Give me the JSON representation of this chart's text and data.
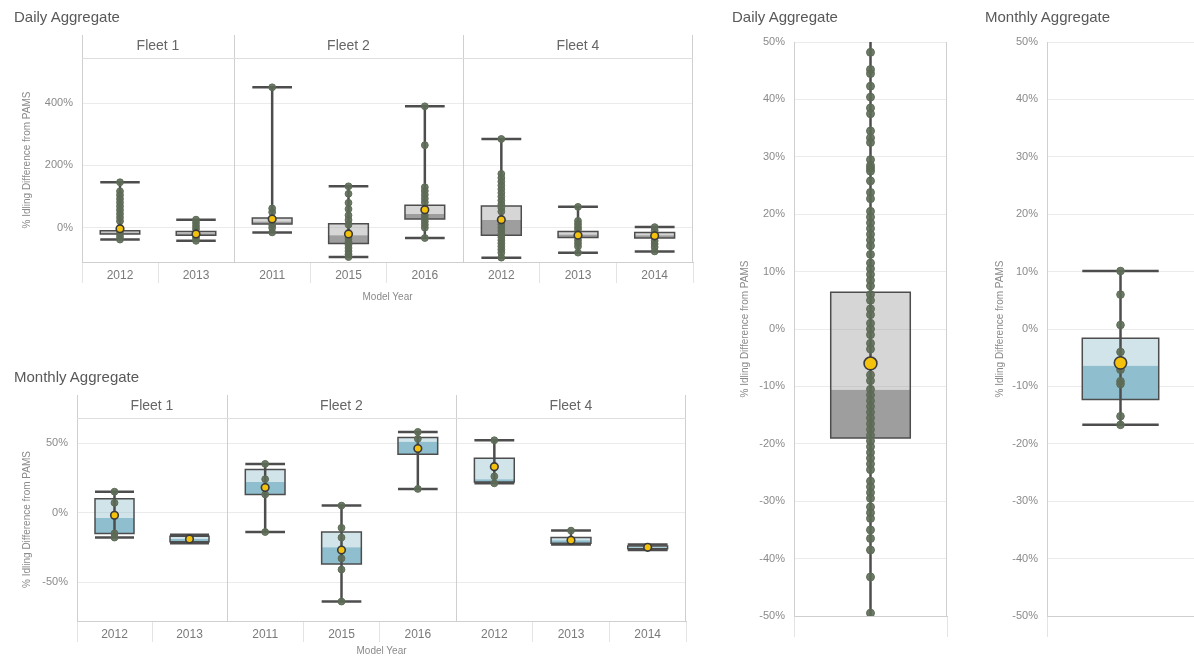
{
  "chart_data": [
    {
      "type": "box",
      "title": "Daily Aggregate",
      "subtitle": "Fleet 1",
      "ylabel": "% Idling Difference from PAMS",
      "categories": [
        "2012",
        "2013"
      ],
      "color": "#9e9e9e",
      "boxes": [
        {
          "low": -38,
          "q1": -20,
          "median": -15,
          "q3": -10,
          "high": 146,
          "mean": -3,
          "outliers": [
            146,
            117,
            105,
            93,
            81,
            69,
            57,
            45,
            33,
            21,
            -18,
            -28,
            -38
          ]
        },
        {
          "low": -42,
          "q1": -24,
          "median": -18,
          "q3": -12,
          "high": 26,
          "mean": -20,
          "outliers": [
            26,
            16,
            6,
            -4,
            -33,
            -42
          ]
        }
      ],
      "ylim": [
        -110,
        545
      ],
      "yticks": [
        {
          "value": 0,
          "label": "0%"
        },
        {
          "value": 200,
          "label": "200%"
        },
        {
          "value": 400,
          "label": "400%"
        }
      ],
      "grid": "y"
    },
    {
      "type": "box",
      "subtitle": "Fleet 2",
      "xlabel": "Model Year",
      "categories": [
        "2011",
        "2015",
        "2016"
      ],
      "color": "#9e9e9e",
      "boxes": [
        {
          "low": -15,
          "q1": 12,
          "median": 20,
          "q3": 31,
          "high": 451,
          "mean": 28,
          "outliers": [
            451,
            62,
            50,
            10,
            0,
            -15
          ]
        },
        {
          "low": -94,
          "q1": -51,
          "median": -24,
          "q3": 13,
          "high": 133,
          "mean": -20,
          "outliers": [
            133,
            109,
            80,
            60,
            40,
            25,
            10,
            -35,
            -45,
            -55,
            -65,
            -75,
            -85,
            -94
          ]
        },
        {
          "low": -33,
          "q1": 28,
          "median": 44,
          "q3": 72,
          "high": 390,
          "mean": 58,
          "outliers": [
            390,
            265,
            130,
            118,
            106,
            94,
            82,
            40,
            30,
            20,
            10,
            0,
            -33
          ]
        }
      ],
      "ylim": [
        -110,
        545
      ],
      "yticks": [
        0,
        200,
        400
      ],
      "grid": "y",
      "tick_labels": "x"
    },
    {
      "type": "box",
      "subtitle": "Fleet 4",
      "categories": [
        "2012",
        "2013",
        "2014"
      ],
      "color": "#9e9e9e",
      "boxes": [
        {
          "low": -96,
          "q1": -24,
          "median": 25,
          "q3": 70,
          "high": 285,
          "mean": 26,
          "outliers": [
            285,
            173,
            160,
            148,
            136,
            124,
            112,
            100,
            88,
            76,
            64,
            52,
            10,
            0,
            -10,
            -20,
            -30,
            -40,
            -50,
            -60,
            -70,
            -80,
            -96
          ]
        },
        {
          "low": -80,
          "q1": -31,
          "median": -22,
          "q3": -12,
          "high": 67,
          "mean": -24,
          "outliers": [
            67,
            22,
            12,
            2,
            -6,
            -40,
            -50,
            -60,
            -80
          ]
        },
        {
          "low": -76,
          "q1": -33,
          "median": -24,
          "q3": -15,
          "high": 2,
          "mean": -26,
          "outliers": [
            2,
            -8,
            -42,
            -52,
            -62,
            -76
          ]
        }
      ],
      "ylim": [
        -110,
        545
      ],
      "yticks": [
        0,
        200,
        400
      ],
      "grid": "y",
      "tick_labels": "x"
    },
    {
      "type": "box",
      "title": "Monthly Aggregate",
      "subtitle": "Fleet 1",
      "ylabel": "% Idling Difference from PAMS",
      "categories": [
        "2012",
        "2013"
      ],
      "color": "#8fbfce",
      "boxes": [
        {
          "low": -18,
          "q1": -15,
          "median": -4,
          "q3": 10,
          "high": 15,
          "mean": -2,
          "outliers": [
            15,
            7,
            -15,
            -18
          ]
        },
        {
          "low": -22,
          "q1": -21,
          "median": -19,
          "q3": -17,
          "high": -16,
          "mean": -19
        }
      ],
      "ylim": [
        -78,
        68
      ],
      "yticks": [
        {
          "value": -50,
          "label": "-50%"
        },
        {
          "value": 0,
          "label": "0%"
        },
        {
          "value": 50,
          "label": "50%"
        }
      ],
      "grid": "y"
    },
    {
      "type": "box",
      "subtitle": "Fleet 2",
      "xlabel": "Model Year",
      "categories": [
        "2011",
        "2015",
        "2016"
      ],
      "color": "#8fbfce",
      "boxes": [
        {
          "low": -14,
          "q1": 13,
          "median": 22,
          "q3": 31,
          "high": 35,
          "mean": 18,
          "outliers": [
            35,
            24,
            13,
            -14
          ]
        },
        {
          "low": -64,
          "q1": -37,
          "median": -25,
          "q3": -14,
          "high": 5,
          "mean": -27,
          "outliers": [
            5,
            -11,
            -18,
            -33,
            -41,
            -64
          ]
        },
        {
          "low": 17,
          "q1": 42,
          "median": 51,
          "q3": 54,
          "high": 58,
          "mean": 46,
          "outliers": [
            58,
            53,
            17
          ]
        }
      ],
      "ylim": [
        -78,
        68
      ],
      "yticks": [
        -50,
        0,
        50
      ],
      "grid": "y",
      "tick_labels": "x"
    },
    {
      "type": "box",
      "subtitle": "Fleet 4",
      "categories": [
        "2012",
        "2013",
        "2014"
      ],
      "color": "#8fbfce",
      "boxes": [
        {
          "low": 21,
          "q1": 22,
          "median": 24,
          "q3": 39,
          "high": 52,
          "mean": 33,
          "outliers": [
            52,
            26,
            21
          ]
        },
        {
          "low": -23,
          "q1": -22,
          "median": -20,
          "q3": -18,
          "high": -13,
          "mean": -20,
          "outliers": [
            -13
          ]
        },
        {
          "low": -27,
          "q1": -26,
          "median": -25,
          "q3": -24,
          "high": -23,
          "mean": -25
        }
      ],
      "ylim": [
        -78,
        68
      ],
      "yticks": [
        -50,
        0,
        50
      ],
      "grid": "y",
      "tick_labels": "x"
    },
    {
      "type": "box",
      "title": "Daily Aggregate",
      "ylabel": "% Idling Difference from PAMS",
      "categories": [
        null
      ],
      "color": "#9e9e9e",
      "boxes": [
        {
          "low": -50,
          "q1": -19,
          "median": -10.6,
          "q3": 6.4,
          "high": 50,
          "mean": -6,
          "outliers": [
            48.2,
            45.2,
            44.5,
            42.3,
            40.4,
            38.5,
            37.5,
            34.5,
            33.3,
            32.5,
            29.5,
            28.5,
            28,
            27.5,
            25.8,
            23.8,
            22.7,
            20.5,
            19.5,
            18.5,
            17.5,
            16.5,
            15.5,
            14.5,
            13,
            11.5,
            10.5,
            9.5,
            8.5,
            7.5,
            6,
            5,
            3.5,
            2.5,
            1,
            0,
            -1,
            -2.5,
            -3.5,
            -8,
            -9,
            -10.5,
            -11.5,
            -12.5,
            -13.5,
            -14.5,
            -15.5,
            -16.5,
            -17.5,
            -18.5,
            -19.5,
            -20.5,
            -21.5,
            -22.5,
            -23.5,
            -24.5,
            -26.5,
            -27.5,
            -28.5,
            -29.5,
            -31,
            -32,
            -33,
            -35,
            -36.5,
            -38.5,
            -43.2,
            -49.5
          ]
        }
      ],
      "ylim": [
        -50,
        50
      ],
      "yticks": [
        {
          "value": -50,
          "label": "-50%"
        },
        {
          "value": -40,
          "label": "-40%"
        },
        {
          "value": -30,
          "label": "-30%"
        },
        {
          "value": -20,
          "label": "-20%"
        },
        {
          "value": -10,
          "label": "-10%"
        },
        {
          "value": 0,
          "label": "0%"
        },
        {
          "value": 10,
          "label": "10%"
        },
        {
          "value": 20,
          "label": "20%"
        },
        {
          "value": 30,
          "label": "30%"
        },
        {
          "value": 40,
          "label": "40%"
        },
        {
          "value": 50,
          "label": "50%"
        }
      ],
      "grid": "y",
      "tick_labels": "y"
    },
    {
      "type": "box",
      "title": "Monthly Aggregate",
      "ylabel": "% Idling Difference from PAMS",
      "categories": [
        null
      ],
      "color": "#8fbfce",
      "boxes": [
        {
          "low": -16.7,
          "q1": -12.3,
          "median": -6.4,
          "q3": -1.6,
          "high": 10.1,
          "mean": -5.9,
          "outliers": [
            10.1,
            6,
            0.7,
            -4,
            -7.1,
            -9.1,
            -9.6,
            -15.2,
            -16.7
          ]
        }
      ],
      "ylim": [
        -50,
        50
      ],
      "yticks": [
        {
          "value": -50,
          "label": "-50%"
        },
        {
          "value": -40,
          "label": "-40%"
        },
        {
          "value": -30,
          "label": "-30%"
        },
        {
          "value": -20,
          "label": "-20%"
        },
        {
          "value": -10,
          "label": "-10%"
        },
        {
          "value": 0,
          "label": "0%"
        },
        {
          "value": 10,
          "label": "10%"
        },
        {
          "value": 20,
          "label": "20%"
        },
        {
          "value": 30,
          "label": "30%"
        },
        {
          "value": 40,
          "label": "40%"
        },
        {
          "value": 50,
          "label": "50%"
        }
      ],
      "grid": "y",
      "tick_labels": "y"
    }
  ]
}
